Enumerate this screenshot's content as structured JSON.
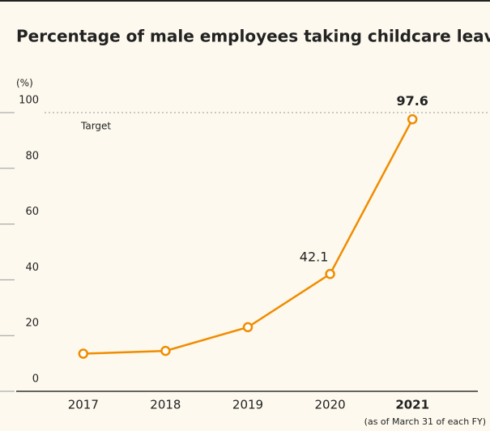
{
  "chart_data": {
    "type": "line",
    "title": "Percentage of male employees taking childcare leave",
    "y_axis_label": "(%)",
    "footnote": "(as of March 31 of each FY)",
    "categories": [
      "2017",
      "2018",
      "2019",
      "2020",
      "2021"
    ],
    "highlight_category": "2021",
    "series": [
      {
        "name": "Percentage",
        "color": "#f08c00",
        "values": [
          13.5,
          14.5,
          23,
          42.1,
          97.6
        ],
        "value_labels": [
          null,
          null,
          null,
          "42.1",
          "97.6"
        ]
      }
    ],
    "target": {
      "text": "Target",
      "value": 100
    },
    "ylim": [
      0,
      100
    ],
    "yticks": [
      0,
      20,
      40,
      60,
      80,
      100
    ]
  }
}
